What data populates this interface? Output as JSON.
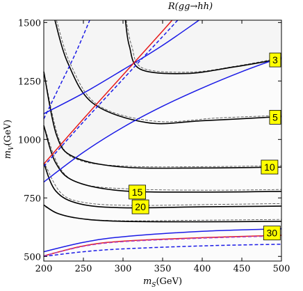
{
  "chart_data": {
    "type": "line",
    "title": "R(gg→hh)",
    "xlabel": "m_S(GeV)",
    "ylabel": "m_V(GeV)",
    "xlabel_parts": {
      "main": "m",
      "sub": "S",
      "unit": "(GeV)"
    },
    "ylabel_parts": {
      "main": "m",
      "sub": "V",
      "unit": "(GeV)"
    },
    "xlim": [
      200,
      500
    ],
    "ylim": [
      480,
      1510
    ],
    "xticks": [
      200,
      250,
      300,
      350,
      400,
      450,
      500
    ],
    "yticks": [
      500,
      750,
      1000,
      1250,
      1500
    ],
    "grid": false,
    "background_shading": {
      "light": "#f5f5f5",
      "lighter": "#fbfbfb"
    },
    "contours": [
      {
        "level": 3,
        "label": "3",
        "label_at": [
          492,
          1340
        ],
        "solid": [
          [
            303,
            1510
          ],
          [
            308,
            1400
          ],
          [
            322,
            1300
          ],
          [
            380,
            1282
          ],
          [
            440,
            1310
          ],
          [
            500,
            1345
          ]
        ],
        "dashed": [
          [
            304,
            1510
          ],
          [
            311,
            1400
          ],
          [
            325,
            1305
          ],
          [
            385,
            1288
          ],
          [
            445,
            1315
          ],
          [
            500,
            1350
          ]
        ]
      },
      {
        "level": 5,
        "label": "5",
        "label_at": [
          492,
          1095
        ],
        "solid": [
          [
            214,
            1510
          ],
          [
            230,
            1330
          ],
          [
            262,
            1155
          ],
          [
            330,
            1072
          ],
          [
            400,
            1080
          ],
          [
            500,
            1098
          ]
        ],
        "dashed": [
          [
            216,
            1510
          ],
          [
            234,
            1320
          ],
          [
            268,
            1148
          ],
          [
            340,
            1078
          ],
          [
            420,
            1092
          ],
          [
            500,
            1103
          ]
        ]
      },
      {
        "level": 10,
        "label": "10",
        "label_at": [
          485,
          882
        ],
        "solid": [
          [
            200,
            1290
          ],
          [
            216,
            1020
          ],
          [
            238,
            925
          ],
          [
            300,
            882
          ],
          [
            400,
            878
          ],
          [
            500,
            882
          ]
        ],
        "dashed": [
          [
            201,
            1270
          ],
          [
            220,
            995
          ],
          [
            246,
            910
          ],
          [
            310,
            885
          ],
          [
            410,
            884
          ],
          [
            500,
            888
          ]
        ]
      },
      {
        "level": 15,
        "label": "15",
        "label_at": [
          318,
          775
        ],
        "solid": [
          [
            200,
            1060
          ],
          [
            215,
            900
          ],
          [
            240,
            820
          ],
          [
            300,
            780
          ],
          [
            400,
            775
          ],
          [
            500,
            778
          ]
        ],
        "dashed": [
          [
            202,
            1040
          ],
          [
            220,
            880
          ],
          [
            248,
            810
          ],
          [
            310,
            788
          ],
          [
            410,
            783
          ],
          [
            500,
            786
          ]
        ]
      },
      {
        "level": 20,
        "label": "20",
        "label_at": [
          322,
          712
        ],
        "solid": [
          [
            200,
            900
          ],
          [
            215,
            780
          ],
          [
            245,
            725
          ],
          [
            300,
            708
          ],
          [
            400,
            712
          ],
          [
            500,
            715
          ]
        ],
        "dashed": [
          [
            202,
            890
          ],
          [
            222,
            770
          ],
          [
            252,
            730
          ],
          [
            310,
            718
          ],
          [
            410,
            722
          ],
          [
            500,
            726
          ]
        ]
      },
      {
        "level": 30,
        "label": "30",
        "label_at": [
          488,
          600
        ],
        "solid": [
          [
            200,
            720
          ],
          [
            218,
            683
          ],
          [
            250,
            660
          ],
          [
            300,
            650
          ],
          [
            400,
            648
          ],
          [
            500,
            650
          ]
        ],
        "dashed": [
          [
            202,
            712
          ],
          [
            224,
            676
          ],
          [
            256,
            658
          ],
          [
            310,
            652
          ],
          [
            410,
            655
          ],
          [
            500,
            658
          ]
        ]
      }
    ],
    "blue_lines": [
      {
        "style": "solid",
        "points": [
          [
            200,
            1110
          ],
          [
            250,
            1198
          ],
          [
            300,
            1298
          ],
          [
            348,
            1398
          ],
          [
            396,
            1510
          ]
        ]
      },
      {
        "style": "solid",
        "points": [
          [
            200,
            818
          ],
          [
            250,
            945
          ],
          [
            300,
            1052
          ],
          [
            350,
            1142
          ],
          [
            400,
            1220
          ],
          [
            450,
            1290
          ],
          [
            500,
            1352
          ]
        ]
      },
      {
        "style": "dashed",
        "points": [
          [
            200,
            1088
          ],
          [
            220,
            1228
          ],
          [
            240,
            1368
          ],
          [
            258,
            1510
          ]
        ]
      },
      {
        "style": "dashed",
        "points": [
          [
            200,
            885
          ],
          [
            250,
            1075
          ],
          [
            300,
            1258
          ],
          [
            350,
            1440
          ],
          [
            369,
            1510
          ]
        ]
      },
      {
        "style": "solid",
        "points": [
          [
            200,
            520
          ],
          [
            250,
            560
          ],
          [
            300,
            584
          ],
          [
            400,
            607
          ],
          [
            500,
            618
          ]
        ]
      },
      {
        "style": "dashed",
        "points": [
          [
            200,
            500
          ],
          [
            250,
            520
          ],
          [
            300,
            532
          ],
          [
            400,
            545
          ],
          [
            500,
            552
          ]
        ]
      }
    ],
    "red_lines": [
      {
        "style": "solid",
        "points": [
          [
            200,
            895
          ],
          [
            250,
            1088
          ],
          [
            300,
            1276
          ],
          [
            349,
            1460
          ],
          [
            362,
            1510
          ]
        ]
      },
      {
        "style": "solid",
        "points": [
          [
            200,
            502
          ],
          [
            250,
            545
          ],
          [
            300,
            565
          ],
          [
            400,
            580
          ],
          [
            500,
            590
          ]
        ]
      }
    ],
    "magenta_lines": [
      {
        "style": "dashed",
        "points": [
          [
            200,
            502
          ],
          [
            250,
            543
          ],
          [
            300,
            563
          ],
          [
            400,
            578
          ],
          [
            500,
            588
          ]
        ]
      }
    ]
  }
}
